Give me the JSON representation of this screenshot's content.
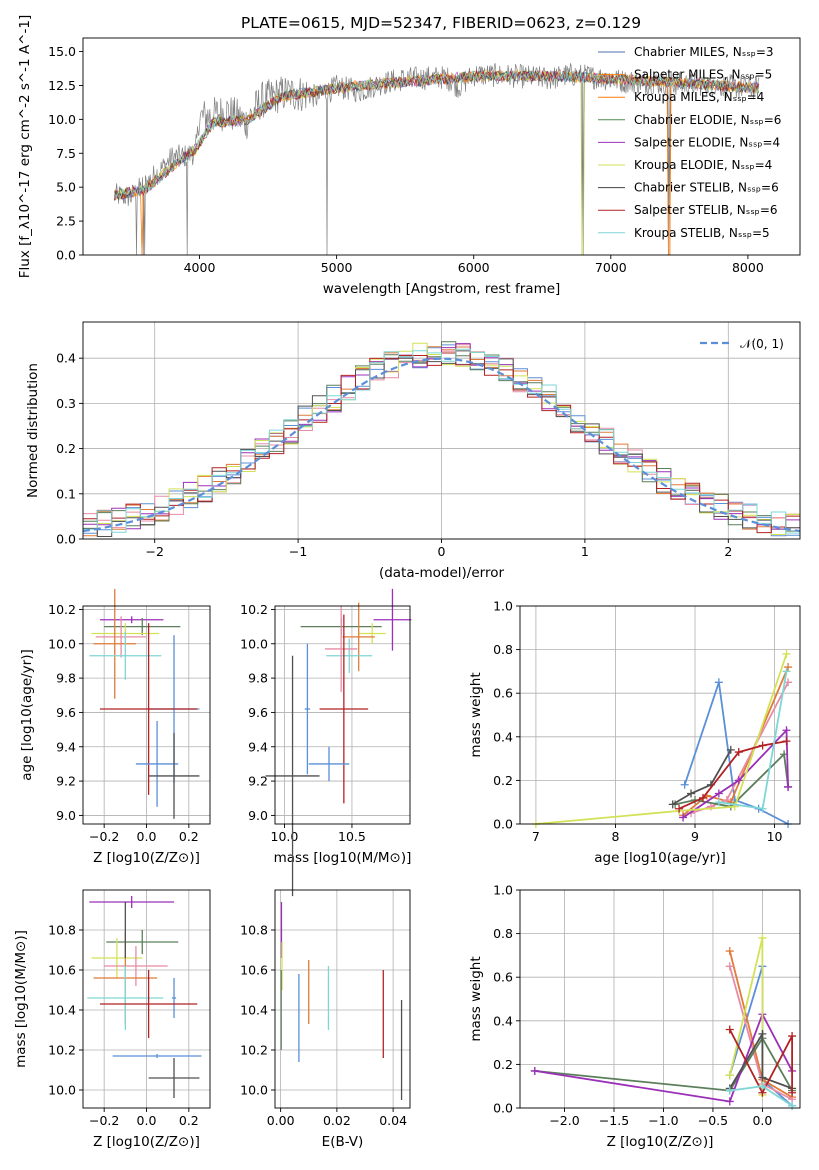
{
  "figure": {
    "title": "PLATE=0615, MJD=52347, FIBERID=0623, z=0.129"
  },
  "chart_data": [
    {
      "id": "spectrum",
      "type": "line",
      "xlabel": "wavelength [Angstrom, rest frame]",
      "ylabel": "Flux [f_λ10^-17 erg cm^-2 s^-1 A^-1]",
      "xlim": [
        3150,
        8380
      ],
      "ylim": [
        0,
        16
      ],
      "xticks": [
        4000,
        5000,
        6000,
        7000,
        8000
      ],
      "yticks": [
        0.0,
        2.5,
        5.0,
        7.5,
        10.0,
        12.5,
        15.0
      ],
      "grid": false,
      "legend_position": "top-right",
      "data_color": "#808080",
      "data_anchors": [
        [
          3380,
          4.4
        ],
        [
          3500,
          4.3
        ],
        [
          3600,
          5.2
        ],
        [
          3700,
          6.1
        ],
        [
          3800,
          7.2
        ],
        [
          3900,
          7.3
        ],
        [
          3970,
          7.6
        ],
        [
          4000,
          10.1
        ],
        [
          4100,
          10.3
        ],
        [
          4200,
          10.6
        ],
        [
          4340,
          9.8
        ],
        [
          4450,
          11.4
        ],
        [
          4600,
          11.9
        ],
        [
          4800,
          11.9
        ],
        [
          4860,
          11.6
        ],
        [
          5000,
          12.4
        ],
        [
          5175,
          12.1
        ],
        [
          5300,
          12.6
        ],
        [
          5500,
          13.0
        ],
        [
          5800,
          13.1
        ],
        [
          5890,
          12.4
        ],
        [
          6000,
          13.3
        ],
        [
          6300,
          13.2
        ],
        [
          6563,
          13.0
        ],
        [
          6700,
          13.3
        ],
        [
          6900,
          13.1
        ],
        [
          7100,
          12.8
        ],
        [
          7300,
          12.7
        ],
        [
          7500,
          12.6
        ],
        [
          7700,
          12.6
        ],
        [
          7900,
          12.4
        ],
        [
          8080,
          12.3
        ]
      ],
      "model_anchors": [
        [
          3380,
          4.4
        ],
        [
          3600,
          4.8
        ],
        [
          3800,
          6.5
        ],
        [
          3970,
          7.8
        ],
        [
          4100,
          9.8
        ],
        [
          4340,
          9.9
        ],
        [
          4600,
          11.7
        ],
        [
          5000,
          12.3
        ],
        [
          5300,
          12.6
        ],
        [
          5800,
          13.0
        ],
        [
          6000,
          13.2
        ],
        [
          6600,
          13.2
        ],
        [
          7000,
          13.0
        ],
        [
          7500,
          12.7
        ],
        [
          8080,
          12.3
        ]
      ],
      "dips": [
        [
          3540,
          0.0
        ],
        [
          3590,
          0.0
        ],
        [
          3600,
          0.0
        ],
        [
          3910,
          0.0
        ],
        [
          4930,
          0.0
        ],
        [
          6790,
          0.0
        ],
        [
          6800,
          0.0
        ],
        [
          7420,
          0.0
        ],
        [
          7430,
          0.0
        ]
      ],
      "series": [
        {
          "name": "Chabrier MILES, N_SSP=3",
          "color": "#4c72b0"
        },
        {
          "name": "Salpeter MILES, N_SSP=5",
          "color": "#ff7f0e"
        },
        {
          "name": "Kroupa MILES, N_SSP=4",
          "color": "#ff7f0e"
        },
        {
          "name": "Chabrier ELODIE, N_SSP=6",
          "color": "#4e8a4e"
        },
        {
          "name": "Salpeter ELODIE, N_SSP=4",
          "color": "#9b30b8"
        },
        {
          "name": "Kroupa ELODIE, N_SSP=4",
          "color": "#d4e157"
        },
        {
          "name": "Chabrier STELIB, N_SSP=6",
          "color": "#404040"
        },
        {
          "name": "Salpeter STELIB, N_SSP=6",
          "color": "#b22222"
        },
        {
          "name": "Kroupa STELIB, N_SSP=5",
          "color": "#7fd6d6"
        }
      ]
    },
    {
      "id": "residuals",
      "type": "line",
      "xlabel": "(data-model)/error",
      "ylabel": "Normed distribution",
      "xlim": [
        -2.5,
        2.5
      ],
      "ylim": [
        0,
        0.48
      ],
      "xticks": [
        -2,
        -1,
        0,
        1,
        2
      ],
      "yticks": [
        0.0,
        0.1,
        0.2,
        0.3,
        0.4
      ],
      "grid": true,
      "legend_position": "top-right",
      "legend": "𝒩(0, 1)",
      "gaussian": {
        "mean": 0,
        "sigma": 1,
        "color": "#5b8fd8"
      },
      "hist_colors": [
        "#5b8fd8",
        "#e07b39",
        "#e88ba5",
        "#5b7f5b",
        "#9b30b8",
        "#d4e157",
        "#505050",
        "#b22222",
        "#7fd6d6"
      ],
      "bin_width": 0.1
    },
    {
      "id": "age-vs-Z",
      "type": "scatter",
      "xlabel": "Z [log10(Z/Z⊙)]",
      "ylabel": "age [log10(age/yr)]",
      "xlim": [
        -0.3,
        0.3
      ],
      "ylim": [
        8.95,
        10.22
      ],
      "xticks": [
        -0.2,
        0.0,
        0.2
      ],
      "xticklabels": [
        "−0.2",
        "0.0",
        "0.2"
      ],
      "yticks": [
        9.0,
        9.2,
        9.4,
        9.6,
        9.8,
        10.0,
        10.2
      ],
      "grid": true,
      "points": [
        {
          "x": -0.07,
          "xerr": 0.15,
          "y": 10.14,
          "yerr": 0.02,
          "color": "#9b30b8"
        },
        {
          "x": -0.02,
          "xerr": 0.18,
          "y": 10.1,
          "yerr": 0.05,
          "color": "#5b7f5b"
        },
        {
          "x": -0.1,
          "xerr": 0.16,
          "y": 10.06,
          "yerr": 0.06,
          "color": "#d4e157"
        },
        {
          "x": -0.12,
          "xerr": 0.12,
          "y": 10.04,
          "yerr": 0.12,
          "color": "#e88ba5"
        },
        {
          "x": -0.15,
          "xerr": 0.1,
          "y": 10.0,
          "yerr": 0.32,
          "color": "#e07b39"
        },
        {
          "x": -0.1,
          "xerr": 0.17,
          "y": 9.93,
          "yerr": 0.14,
          "color": "#7fd6d6"
        },
        {
          "x": 0.13,
          "xerr": 0.12,
          "y": 9.62,
          "yerr": 0.43,
          "color": "#5b8fd8"
        },
        {
          "x": 0.01,
          "xerr": 0.23,
          "y": 9.62,
          "yerr": 0.5,
          "color": "#b22222"
        },
        {
          "x": 0.05,
          "xerr": 0.1,
          "y": 9.3,
          "yerr": 0.25,
          "color": "#5b8fd8"
        },
        {
          "x": 0.13,
          "xerr": 0.12,
          "y": 9.23,
          "yerr": 0.25,
          "color": "#505050"
        }
      ]
    },
    {
      "id": "age-vs-mass",
      "type": "scatter",
      "xlabel": "mass [log10(M/M⊙)]",
      "ylabel": "",
      "xlim": [
        9.93,
        10.93
      ],
      "ylim": [
        8.95,
        10.22
      ],
      "xticks": [
        10.0,
        10.5
      ],
      "yticks": [
        9.0,
        9.2,
        9.4,
        9.6,
        9.8,
        10.0,
        10.2
      ],
      "grid": true,
      "points": [
        {
          "x": 10.8,
          "xerr": 0.14,
          "y": 10.14,
          "yerr": 0.18,
          "color": "#9b30b8"
        },
        {
          "x": 10.42,
          "xerr": 0.3,
          "y": 10.1,
          "yerr": 0.05,
          "color": "#5b7f5b"
        },
        {
          "x": 10.65,
          "xerr": 0.1,
          "y": 10.06,
          "yerr": 0.06,
          "color": "#d4e157"
        },
        {
          "x": 10.55,
          "xerr": 0.12,
          "y": 10.04,
          "yerr": 0.2,
          "color": "#e07b39"
        },
        {
          "x": 10.48,
          "xerr": 0.17,
          "y": 9.93,
          "yerr": 0.1,
          "color": "#7fd6d6"
        },
        {
          "x": 10.42,
          "xerr": 0.12,
          "y": 9.97,
          "yerr": 0.25,
          "color": "#e88ba5"
        },
        {
          "x": 10.17,
          "xerr": 0.02,
          "y": 9.62,
          "yerr": 0.38,
          "color": "#5b8fd8"
        },
        {
          "x": 10.44,
          "xerr": 0.18,
          "y": 9.62,
          "yerr": 0.55,
          "color": "#b22222"
        },
        {
          "x": 10.33,
          "xerr": 0.15,
          "y": 9.3,
          "yerr": 0.1,
          "color": "#5b8fd8"
        },
        {
          "x": 10.06,
          "xerr": 0.2,
          "y": 9.23,
          "yerr": 0.7,
          "color": "#505050"
        }
      ]
    },
    {
      "id": "weight-vs-age",
      "type": "line",
      "xlabel": "age [log10(age/yr)]",
      "ylabel": "mass weight",
      "xlim": [
        6.8,
        10.32
      ],
      "ylim": [
        0.0,
        1.0
      ],
      "xticks": [
        7,
        8,
        9,
        10
      ],
      "yticks": [
        0.0,
        0.2,
        0.4,
        0.6,
        0.8,
        1.0
      ],
      "grid": true,
      "series": [
        {
          "color": "#5b8fd8",
          "x": [
            8.87,
            9.3,
            9.5,
            9.8,
            10.17
          ],
          "y": [
            0.18,
            0.65,
            0.11,
            0.07,
            0.0
          ]
        },
        {
          "color": "#e07b39",
          "x": [
            8.85,
            9.15,
            9.45,
            10.17
          ],
          "y": [
            0.04,
            0.13,
            0.1,
            0.72
          ]
        },
        {
          "color": "#e88ba5",
          "x": [
            8.95,
            9.2,
            9.4,
            10.17
          ],
          "y": [
            0.05,
            0.08,
            0.11,
            0.65
          ]
        },
        {
          "color": "#5b7f5b",
          "x": [
            8.75,
            9.0,
            9.45,
            10.12,
            10.17
          ],
          "y": [
            0.09,
            0.11,
            0.08,
            0.32,
            0.17
          ]
        },
        {
          "color": "#9b30b8",
          "x": [
            8.85,
            9.3,
            9.55,
            10.15,
            10.17
          ],
          "y": [
            0.03,
            0.14,
            0.2,
            0.43,
            0.17
          ]
        },
        {
          "color": "#d4e157",
          "x": [
            7.0,
            8.8,
            9.5,
            10.15
          ],
          "y": [
            0.0,
            0.06,
            0.08,
            0.78
          ]
        },
        {
          "color": "#505050",
          "x": [
            8.72,
            8.95,
            9.2,
            9.45
          ],
          "y": [
            0.09,
            0.14,
            0.18,
            0.34
          ]
        },
        {
          "color": "#b22222",
          "x": [
            8.8,
            9.1,
            9.55,
            9.85,
            10.15
          ],
          "y": [
            0.07,
            0.12,
            0.33,
            0.36,
            0.38
          ]
        },
        {
          "color": "#7fd6d6",
          "x": [
            9.3,
            9.85,
            10.15
          ],
          "y": [
            0.1,
            0.07,
            0.7
          ]
        }
      ]
    },
    {
      "id": "mass-vs-Z",
      "type": "scatter",
      "xlabel": "Z [log10(Z/Z⊙)]",
      "ylabel": "mass [log10(M/M⊙)]",
      "xlim": [
        -0.3,
        0.3
      ],
      "ylim": [
        9.91,
        11.0
      ],
      "xticks": [
        -0.2,
        0.0,
        0.2
      ],
      "xticklabels": [
        "−0.2",
        "0.0",
        "0.2"
      ],
      "yticks": [
        10.0,
        10.2,
        10.4,
        10.6,
        10.8
      ],
      "grid": true,
      "points": [
        {
          "x": -0.07,
          "xerr": 0.2,
          "y": 10.94,
          "yerr": 0.03,
          "color": "#9b30b8"
        },
        {
          "x": -0.02,
          "xerr": 0.17,
          "y": 10.74,
          "yerr": 0.06,
          "color": "#5b7f5b"
        },
        {
          "x": -0.14,
          "xerr": 0.12,
          "y": 10.66,
          "yerr": 0.1,
          "color": "#d4e157"
        },
        {
          "x": -0.05,
          "xerr": 0.15,
          "y": 10.62,
          "yerr": 0.1,
          "color": "#e88ba5"
        },
        {
          "x": -0.1,
          "xerr": 0.15,
          "y": 10.56,
          "yerr": 0.23,
          "color": "#e07b39"
        },
        {
          "x": -0.1,
          "xerr": 0.18,
          "y": 10.46,
          "yerr": 0.16,
          "color": "#7fd6d6"
        },
        {
          "x": 0.13,
          "xerr": 0.01,
          "y": 10.46,
          "yerr": 0.1,
          "color": "#5b8fd8"
        },
        {
          "x": 0.01,
          "xerr": 0.23,
          "y": 10.43,
          "yerr": 0.17,
          "color": "#b22222"
        },
        {
          "x": 0.05,
          "xerr": 0.21,
          "y": 10.17,
          "yerr": 0.01,
          "color": "#5b8fd8"
        },
        {
          "x": 0.13,
          "xerr": 0.12,
          "y": 10.06,
          "yerr": 0.1,
          "color": "#505050"
        },
        {
          "x": -0.1,
          "xerr": 0.0,
          "y": 10.8,
          "yerr": 0.14,
          "color": "#505050"
        }
      ]
    },
    {
      "id": "mass-vs-ebv",
      "type": "scatter",
      "xlabel": "E(B-V)",
      "ylabel": "",
      "xlim": [
        -0.002,
        0.046
      ],
      "ylim": [
        9.91,
        11.0
      ],
      "xticks": [
        0.0,
        0.02,
        0.04
      ],
      "xticklabels": [
        "0.00",
        "0.02",
        "0.04"
      ],
      "yticks": [
        10.0,
        10.2,
        10.4,
        10.6,
        10.8
      ],
      "grid": true,
      "points": [
        {
          "x": 0.0003,
          "y": 10.8,
          "yerr": 0.14,
          "color": "#9b30b8"
        },
        {
          "x": 0.0005,
          "y": 10.62,
          "yerr": 0.12,
          "color": "#d4e157"
        },
        {
          "x": 0.0002,
          "y": 10.4,
          "yerr": 0.2,
          "color": "#5b7f5b"
        },
        {
          "x": 0.0065,
          "y": 10.36,
          "yerr": 0.22,
          "color": "#5b8fd8"
        },
        {
          "x": 0.01,
          "y": 10.49,
          "yerr": 0.16,
          "color": "#e07b39"
        },
        {
          "x": 0.017,
          "y": 10.46,
          "yerr": 0.16,
          "color": "#7fd6d6"
        },
        {
          "x": 0.0365,
          "y": 10.38,
          "yerr": 0.22,
          "color": "#b22222"
        },
        {
          "x": 0.043,
          "y": 10.2,
          "yerr": 0.25,
          "color": "#505050"
        }
      ]
    },
    {
      "id": "weight-vs-Z",
      "type": "line",
      "xlabel": "Z [log10(Z/Z⊙)]",
      "ylabel": "mass weight",
      "xlim": [
        -2.45,
        0.38
      ],
      "ylim": [
        0.0,
        1.0
      ],
      "xticks": [
        -2.0,
        -1.5,
        -1.0,
        -0.5,
        0.0
      ],
      "xticklabels": [
        "−2.0",
        "−1.5",
        "−1.0",
        "−0.5",
        "0.0"
      ],
      "yticks": [
        0.0,
        0.2,
        0.4,
        0.6,
        0.8,
        1.0
      ],
      "grid": true,
      "series": [
        {
          "color": "#5b8fd8",
          "x": [
            -0.33,
            0.0,
            0.0,
            0.3
          ],
          "y": [
            0.15,
            0.65,
            0.13,
            0.01
          ]
        },
        {
          "color": "#e07b39",
          "x": [
            -0.33,
            0.0,
            0.3
          ],
          "y": [
            0.72,
            0.13,
            0.05
          ]
        },
        {
          "color": "#e88ba5",
          "x": [
            -0.33,
            0.0,
            0.3
          ],
          "y": [
            0.65,
            0.11,
            0.04
          ]
        },
        {
          "color": "#5b7f5b",
          "x": [
            -2.3,
            -0.33,
            0.0,
            0.3
          ],
          "y": [
            0.17,
            0.08,
            0.32,
            0.08
          ]
        },
        {
          "color": "#9b30b8",
          "x": [
            -2.3,
            -0.33,
            0.0,
            0.3
          ],
          "y": [
            0.17,
            0.03,
            0.43,
            0.17
          ]
        },
        {
          "color": "#d4e157",
          "x": [
            -0.33,
            0.0,
            0.0
          ],
          "y": [
            0.15,
            0.78,
            0.06
          ]
        },
        {
          "color": "#505050",
          "x": [
            -0.33,
            0.0,
            0.0,
            0.3
          ],
          "y": [
            0.09,
            0.34,
            0.14,
            0.09
          ]
        },
        {
          "color": "#b22222",
          "x": [
            -0.33,
            0.0,
            0.3,
            0.3
          ],
          "y": [
            0.36,
            0.07,
            0.33,
            0.07
          ]
        },
        {
          "color": "#7fd6d6",
          "x": [
            -0.33,
            0.0,
            0.3
          ],
          "y": [
            0.08,
            0.1,
            0.01
          ]
        }
      ]
    }
  ]
}
